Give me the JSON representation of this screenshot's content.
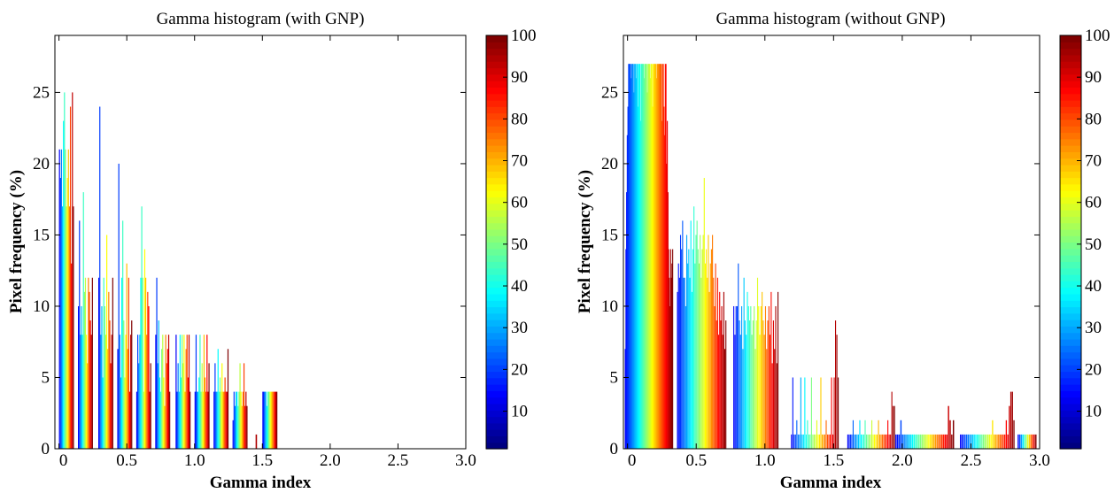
{
  "chart_data": [
    {
      "type": "bar",
      "title": "Gamma histogram (with GNP)",
      "xlabel": "Gamma index",
      "ylabel": "Pixel frequency (%)",
      "xlim": [
        -0.03,
        3.0
      ],
      "ylim": [
        0,
        29
      ],
      "xticks": [
        0,
        0.5,
        1.0,
        1.5,
        2.0,
        2.5,
        3.0
      ],
      "xtick_labels": [
        "0",
        "0.5",
        "1.0",
        "1.5",
        "2.0",
        "2.5",
        "3.0"
      ],
      "yticks": [
        0,
        5,
        10,
        15,
        20,
        25
      ],
      "yticks_labels": [
        "0",
        "5",
        "10",
        "15",
        "20",
        "25"
      ],
      "grid": false,
      "colorbar": {
        "min": 1,
        "max": 100,
        "ticks": [
          10,
          20,
          30,
          40,
          50,
          60,
          70,
          80,
          90,
          100
        ],
        "colormap": "jet"
      },
      "groups": [
        {
          "x": 0.0,
          "values": [
            21,
            19,
            21,
            17,
            23,
            25,
            21,
            17,
            19,
            21,
            17,
            24,
            13,
            25,
            17
          ]
        },
        {
          "x": 0.14,
          "values": [
            10,
            16,
            8,
            10,
            8,
            18,
            11,
            12,
            8,
            6,
            12,
            11,
            9,
            8,
            12
          ]
        },
        {
          "x": 0.29,
          "values": [
            12,
            24,
            8,
            10,
            5,
            12,
            10,
            8,
            15,
            7,
            11,
            9,
            6,
            8,
            12
          ]
        },
        {
          "x": 0.43,
          "values": [
            7,
            20,
            8,
            5,
            12,
            16,
            9,
            5,
            8,
            13,
            7,
            12,
            4,
            8,
            9
          ]
        },
        {
          "x": 0.57,
          "values": [
            4,
            8,
            6,
            8,
            12,
            17,
            12,
            4,
            14,
            12,
            8,
            11,
            10,
            4,
            6
          ]
        },
        {
          "x": 0.71,
          "values": [
            8,
            12,
            6,
            9,
            5,
            4,
            7,
            8,
            5,
            3,
            8,
            6,
            7,
            8,
            4
          ]
        },
        {
          "x": 0.86,
          "values": [
            8,
            4,
            6,
            4,
            8,
            5,
            8,
            6,
            8,
            4,
            7,
            8,
            5,
            8,
            4
          ]
        },
        {
          "x": 1.0,
          "values": [
            4,
            8,
            4,
            4,
            5,
            8,
            4,
            6,
            4,
            8,
            5,
            4,
            8,
            4,
            6
          ]
        },
        {
          "x": 1.14,
          "values": [
            4,
            6,
            4,
            4,
            7,
            4,
            5,
            4,
            6,
            4,
            4,
            5,
            4,
            4,
            7
          ]
        },
        {
          "x": 1.28,
          "values": [
            2,
            4,
            3,
            4,
            4,
            3,
            4,
            6,
            4,
            3,
            4,
            6,
            3,
            4,
            3
          ]
        },
        {
          "x": 1.5,
          "values": [
            4,
            4,
            4,
            4,
            3,
            4,
            4,
            4,
            4,
            4,
            4,
            4,
            4,
            4,
            4
          ]
        }
      ],
      "isolated_bars": [
        {
          "x": 1.45,
          "value": 1,
          "c": 95
        }
      ]
    },
    {
      "type": "bar",
      "title": "Gamma histogram (without GNP)",
      "xlabel": "Gamma index",
      "ylabel": "Pixel frequency (%)",
      "xlim": [
        -0.03,
        3.0
      ],
      "ylim": [
        0,
        29
      ],
      "xticks": [
        0,
        0.5,
        1.0,
        1.5,
        2.0,
        2.5,
        3.0
      ],
      "xtick_labels": [
        "0",
        "0.5",
        "1.0",
        "1.5",
        "2.0",
        "2.5",
        "3.0"
      ],
      "yticks": [
        0,
        5,
        10,
        15,
        20,
        25
      ],
      "yticks_labels": [
        "0",
        "5",
        "10",
        "15",
        "20",
        "25"
      ],
      "grid": false,
      "colorbar": {
        "min": 1,
        "max": 100,
        "ticks": [
          10,
          20,
          30,
          40,
          50,
          60,
          70,
          80,
          90,
          100
        ],
        "colormap": "jet"
      },
      "clusters": [
        {
          "x_start": -0.02,
          "x_end": 0.33,
          "n": 72,
          "base": 27,
          "profile": [
            7,
            14,
            18,
            22,
            24,
            27,
            27,
            27,
            27,
            26,
            27,
            27,
            27,
            25,
            27,
            27,
            26,
            27,
            27,
            24,
            27,
            27,
            27,
            23,
            27,
            27,
            27,
            27,
            26,
            27,
            27,
            27,
            27,
            25,
            27,
            27,
            27,
            27,
            26,
            27,
            27,
            24,
            27,
            27,
            27,
            27,
            27,
            26,
            27,
            27,
            27,
            27,
            27,
            27,
            27,
            23,
            27,
            27,
            24,
            22,
            27,
            27,
            20,
            23,
            18,
            14,
            12,
            10,
            14,
            12,
            13,
            14
          ]
        },
        {
          "x_start": 0.36,
          "x_end": 0.72,
          "n": 48,
          "profile": [
            11,
            13,
            12,
            15,
            14,
            16,
            12,
            12,
            10,
            15,
            13,
            14,
            12,
            16,
            11,
            14,
            17,
            13,
            15,
            16,
            14,
            13,
            15,
            12,
            14,
            15,
            19,
            13,
            14,
            12,
            15,
            11,
            13,
            14,
            15,
            12,
            10,
            13,
            9,
            12,
            8,
            11,
            9,
            10,
            8,
            11,
            7,
            9
          ]
        },
        {
          "x_start": 0.77,
          "x_end": 1.1,
          "n": 40,
          "profile": [
            10,
            8,
            10,
            10,
            13,
            9,
            8,
            10,
            7,
            12,
            9,
            8,
            11,
            10,
            9,
            10,
            8,
            9,
            10,
            7,
            9,
            12,
            10,
            8,
            10,
            11,
            9,
            8,
            10,
            7,
            9,
            10,
            8,
            11,
            6,
            9,
            7,
            10,
            6,
            11
          ]
        },
        {
          "x_start": 1.19,
          "x_end": 1.54,
          "n": 36,
          "profile": [
            1,
            5,
            1,
            1,
            2,
            1,
            1,
            5,
            1,
            1,
            5,
            1,
            2,
            1,
            1,
            5,
            1,
            1,
            1,
            2,
            1,
            1,
            5,
            1,
            1,
            1,
            2,
            1,
            1,
            1,
            5,
            1,
            5,
            9,
            8,
            5
          ]
        },
        {
          "x_start": 1.6,
          "x_end": 1.95,
          "n": 36,
          "profile": [
            1,
            1,
            1,
            1,
            2,
            1,
            1,
            1,
            1,
            2,
            1,
            1,
            1,
            2,
            1,
            1,
            1,
            1,
            2,
            1,
            1,
            1,
            1,
            2,
            1,
            1,
            1,
            1,
            1,
            1,
            2,
            1,
            1,
            4,
            3,
            3
          ]
        },
        {
          "x_start": 1.95,
          "x_end": 2.38,
          "n": 36,
          "profile": [
            1,
            1,
            1,
            2,
            1,
            1,
            1,
            1,
            1,
            1,
            1,
            1,
            1,
            1,
            1,
            1,
            1,
            1,
            1,
            1,
            1,
            1,
            1,
            1,
            1,
            1,
            1,
            1,
            1,
            1,
            1,
            1,
            3,
            2,
            1,
            2
          ]
        },
        {
          "x_start": 2.42,
          "x_end": 2.82,
          "n": 36,
          "profile": [
            1,
            1,
            1,
            1,
            1,
            1,
            1,
            1,
            1,
            1,
            1,
            1,
            1,
            1,
            1,
            1,
            1,
            1,
            1,
            1,
            1,
            2,
            1,
            1,
            1,
            1,
            1,
            1,
            1,
            1,
            2,
            1,
            3,
            4,
            4,
            2
          ]
        },
        {
          "x_start": 2.84,
          "x_end": 2.98,
          "n": 12,
          "profile": [
            1,
            1,
            1,
            1,
            1,
            1,
            1,
            1,
            1,
            1,
            1,
            1
          ]
        }
      ]
    }
  ]
}
